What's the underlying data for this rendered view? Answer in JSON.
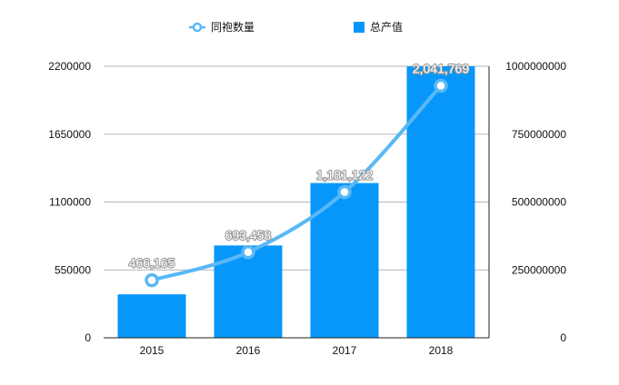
{
  "chart_data": {
    "type": "bar",
    "categories": [
      "2015",
      "2016",
      "2017",
      "2018"
    ],
    "series": [
      {
        "name": "同袍数量",
        "kind": "line",
        "axis": "left",
        "values": [
          466165,
          693458,
          1181122,
          2041769
        ],
        "color": "#5AB8F5"
      },
      {
        "name": "总产值",
        "kind": "bar",
        "axis": "right",
        "values": [
          160000000,
          340000000,
          570000000,
          1000000000
        ],
        "color": "#0797FA"
      }
    ],
    "data_labels": [
      "466,165",
      "693,458",
      "1,181,122",
      "2,041,769"
    ],
    "left_axis": {
      "min": 0,
      "max": 2200000,
      "ticks": [
        "0",
        "550000",
        "1100000",
        "1650000",
        "2200000"
      ]
    },
    "right_axis": {
      "min": 0,
      "max": 1000000000,
      "ticks": [
        "0",
        "250000000",
        "500000000",
        "750000000",
        "1000000000"
      ]
    },
    "grid": true,
    "legend_position": "top"
  }
}
